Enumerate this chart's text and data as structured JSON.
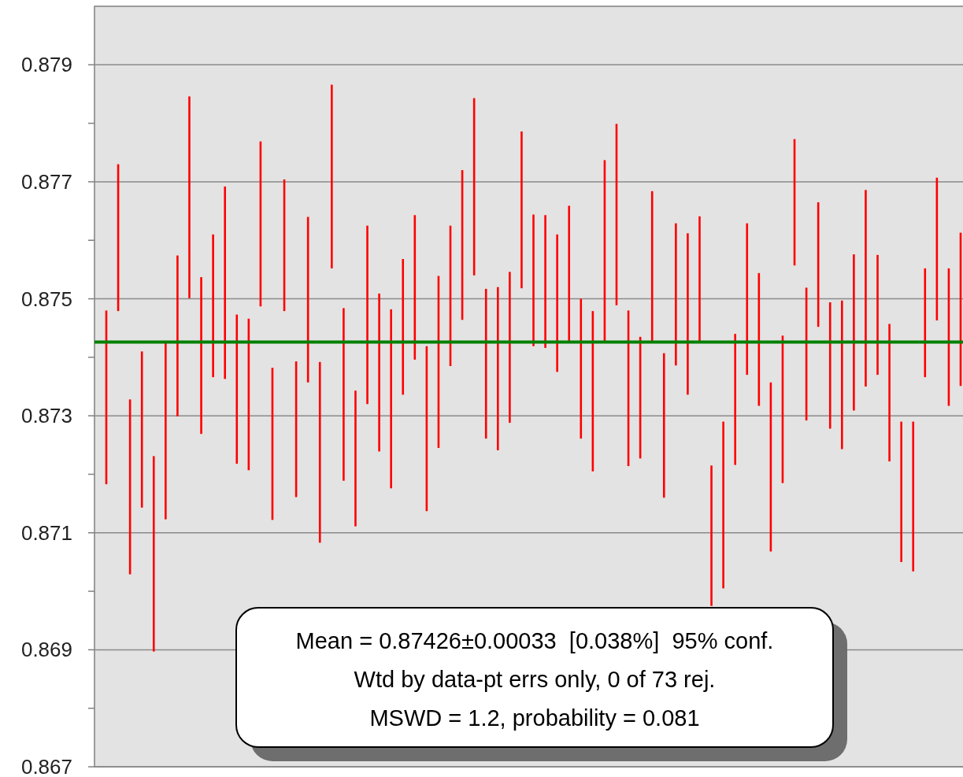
{
  "chart_data": {
    "type": "bar",
    "categories": [
      null,
      null,
      null,
      null,
      null,
      null,
      null,
      null,
      null,
      null,
      null,
      null,
      null,
      null,
      null,
      null,
      null,
      null,
      null,
      null,
      null,
      null,
      null,
      null,
      null,
      null,
      null,
      null,
      null,
      null,
      null,
      null,
      null,
      null,
      null,
      null,
      null,
      null,
      null,
      null,
      null,
      null,
      null,
      null,
      null,
      null,
      null,
      null,
      null,
      null,
      null,
      null,
      null,
      null,
      null,
      null,
      null,
      null,
      null,
      null,
      null,
      null,
      null,
      null,
      null,
      null,
      null,
      null,
      null,
      null,
      null,
      null,
      null
    ],
    "base": [
      0.87183,
      0.87479,
      0.87029,
      0.87143,
      0.86897,
      0.87123,
      0.87299,
      0.87501,
      0.87269,
      0.87366,
      0.87363,
      0.87218,
      0.87207,
      0.87487,
      0.87122,
      0.87479,
      0.87161,
      0.87357,
      0.87083,
      0.87552,
      0.87189,
      0.87111,
      0.8732,
      0.87239,
      0.87176,
      0.87336,
      0.87396,
      0.87137,
      0.87245,
      0.87385,
      0.87464,
      0.8754,
      0.87261,
      0.87241,
      0.87288,
      0.87518,
      0.87419,
      0.87416,
      0.87375,
      0.87424,
      0.87261,
      0.87205,
      0.87425,
      0.87489,
      0.87214,
      0.87227,
      0.87428,
      0.8716,
      0.87386,
      0.87336,
      0.87427,
      0.86975,
      0.87005,
      0.87216,
      0.8737,
      0.87317,
      0.87068,
      0.87185,
      0.87557,
      0.87292,
      0.87452,
      0.87278,
      0.87243,
      0.87309,
      0.8735,
      0.8737,
      0.87222,
      0.8705,
      0.87034,
      0.87366,
      0.87463,
      0.87317,
      0.87351
    ],
    "values": [
      0.00297,
      0.00251,
      0.00299,
      0.00267,
      0.00334,
      0.00301,
      0.00275,
      0.00345,
      0.00268,
      0.00244,
      0.00329,
      0.00255,
      0.00259,
      0.00282,
      0.0026,
      0.00225,
      0.00232,
      0.00283,
      0.00309,
      0.00314,
      0.00295,
      0.00232,
      0.00305,
      0.0027,
      0.00306,
      0.00232,
      0.00247,
      0.00282,
      0.00294,
      0.0024,
      0.00256,
      0.00303,
      0.00256,
      0.00279,
      0.00258,
      0.00268,
      0.00225,
      0.00227,
      0.00235,
      0.00235,
      0.00239,
      0.00274,
      0.00312,
      0.0031,
      0.00266,
      0.00208,
      0.00256,
      0.00247,
      0.00243,
      0.00276,
      0.00214,
      0.0024,
      0.00285,
      0.00224,
      0.00259,
      0.00227,
      0.00289,
      0.00252,
      0.00216,
      0.00227,
      0.00213,
      0.00216,
      0.00254,
      0.00267,
      0.00336,
      0.00205,
      0.00235,
      0.0024,
      0.00256,
      0.00186,
      0.00244,
      0.00235,
      0.00262
    ],
    "color": "#ff0000",
    "ylim": [
      0.867,
      0.88
    ],
    "yticks": [
      0.867,
      {
        "value": 0.868,
        "label": null
      },
      0.869,
      {
        "value": 0.87,
        "label": null
      },
      0.871,
      {
        "value": 0.872,
        "label": null
      },
      0.873,
      {
        "value": 0.874,
        "label": null
      },
      0.875,
      {
        "value": 0.876,
        "label": null
      },
      0.877,
      {
        "value": 0.878,
        "label": null
      },
      0.879
    ],
    "grid": "y",
    "tick_labels": "y",
    "ref_lines": [
      {
        "axis": "y",
        "value": 0.87426,
        "color": "#008000"
      }
    ],
    "annotations": [
      "Mean = 0.87426±0.00033  [0.038%]  95% conf.",
      "Wtd by data-pt errs only, 0 of 73 rej.",
      "MSWD = 1.2, probability = 0.081"
    ]
  }
}
